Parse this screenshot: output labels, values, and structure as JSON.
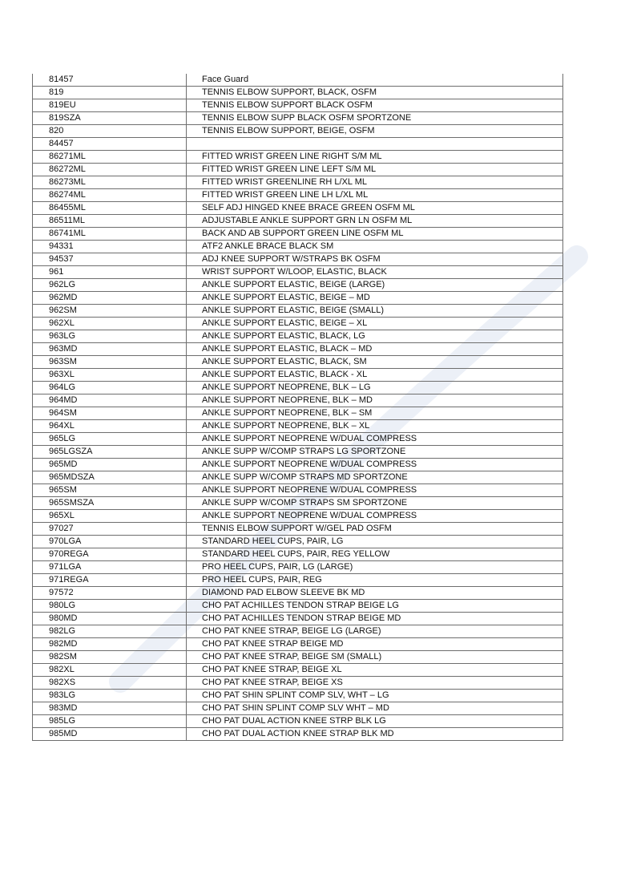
{
  "table": {
    "rows": [
      [
        "81457",
        "Face Guard"
      ],
      [
        "819",
        "TENNIS ELBOW SUPPORT, BLACK, OSFM"
      ],
      [
        "819EU",
        "TENNIS ELBOW SUPPORT BLACK OSFM"
      ],
      [
        "819SZA",
        "TENNIS ELBOW SUPP BLACK OSFM SPORTZONE"
      ],
      [
        "820",
        "TENNIS ELBOW SUPPORT, BEIGE, OSFM"
      ],
      [
        "84457",
        ""
      ],
      [
        "86271ML",
        "FITTED WRIST GREEN LINE RIGHT S/M ML"
      ],
      [
        "86272ML",
        "FITTED WRIST GREEN LINE LEFT S/M ML"
      ],
      [
        "86273ML",
        "FITTED WRIST GREENLINE RH L/XL ML"
      ],
      [
        "86274ML",
        "FITTED WRIST GREEN LINE LH L/XL ML"
      ],
      [
        "86455ML",
        "SELF ADJ HINGED KNEE BRACE GREEN OSFM ML"
      ],
      [
        "86511ML",
        "ADJUSTABLE ANKLE SUPPORT GRN LN OSFM ML"
      ],
      [
        "86741ML",
        "BACK AND AB SUPPORT GREEN LINE OSFM ML"
      ],
      [
        "94331",
        "ATF2 ANKLE BRACE BLACK SM"
      ],
      [
        "94537",
        "ADJ KNEE SUPPORT W/STRAPS BK OSFM"
      ],
      [
        "961",
        "WRIST SUPPORT W/LOOP, ELASTIC, BLACK"
      ],
      [
        "962LG",
        "ANKLE SUPPORT ELASTIC, BEIGE (LARGE)"
      ],
      [
        "962MD",
        "ANKLE SUPPORT ELASTIC, BEIGE – MD"
      ],
      [
        "962SM",
        "ANKLE SUPPORT ELASTIC, BEIGE (SMALL)"
      ],
      [
        "962XL",
        "ANKLE SUPPORT ELASTIC, BEIGE – XL"
      ],
      [
        "963LG",
        "ANKLE SUPPORT ELASTIC, BLACK, LG"
      ],
      [
        "963MD",
        "ANKLE SUPPORT ELASTIC, BLACK – MD"
      ],
      [
        "963SM",
        "ANKLE SUPPORT ELASTIC, BLACK, SM"
      ],
      [
        "963XL",
        "ANKLE SUPPORT ELASTIC, BLACK  - XL"
      ],
      [
        "964LG",
        "ANKLE SUPPORT NEOPRENE, BLK – LG"
      ],
      [
        "964MD",
        "ANKLE SUPPORT NEOPRENE, BLK – MD"
      ],
      [
        "964SM",
        "ANKLE SUPPORT NEOPRENE, BLK – SM"
      ],
      [
        "964XL",
        "ANKLE SUPPORT NEOPRENE, BLK – XL"
      ],
      [
        "965LG",
        "ANKLE SUPPORT NEOPRENE W/DUAL COMPRESS"
      ],
      [
        "965LGSZA",
        "ANKLE SUPP W/COMP STRAPS LG SPORTZONE"
      ],
      [
        "965MD",
        "ANKLE SUPPORT NEOPRENE W/DUAL COMPRESS"
      ],
      [
        "965MDSZA",
        "ANKLE SUPP W/COMP STRAPS MD SPORTZONE"
      ],
      [
        "965SM",
        "ANKLE SUPPORT NEOPRENE W/DUAL COMPRESS"
      ],
      [
        "965SMSZA",
        "ANKLE SUPP W/COMP STRAPS SM SPORTZONE"
      ],
      [
        "965XL",
        "ANKLE SUPPORT NEOPRENE W/DUAL COMPRESS"
      ],
      [
        "97027",
        "TENNIS ELBOW SUPPORT W/GEL PAD OSFM"
      ],
      [
        "970LGA",
        "STANDARD HEEL CUPS, PAIR, LG"
      ],
      [
        "970REGA",
        "STANDARD HEEL CUPS, PAIR, REG YELLOW"
      ],
      [
        "971LGA",
        "PRO HEEL CUPS, PAIR, LG (LARGE)"
      ],
      [
        "971REGA",
        "PRO HEEL CUPS, PAIR, REG"
      ],
      [
        "97572",
        "DIAMOND PAD ELBOW SLEEVE BK MD"
      ],
      [
        "980LG",
        "CHO PAT ACHILLES TENDON STRAP BEIGE LG"
      ],
      [
        "980MD",
        "CHO PAT ACHILLES TENDON STRAP BEIGE MD"
      ],
      [
        "982LG",
        "CHO PAT KNEE STRAP, BEIGE LG (LARGE)"
      ],
      [
        "982MD",
        "CHO PAT KNEE STRAP BEIGE MD"
      ],
      [
        "982SM",
        "CHO PAT KNEE STRAP, BEIGE SM (SMALL)"
      ],
      [
        "982XL",
        "CHO PAT KNEE STRAP, BEIGE XL"
      ],
      [
        "982XS",
        "CHO PAT KNEE STRAP, BEIGE XS"
      ],
      [
        "983LG",
        "CHO PAT SHIN SPLINT COMP SLV, WHT – LG"
      ],
      [
        "983MD",
        "CHO PAT SHIN SPLINT COMP SLV WHT – MD"
      ],
      [
        "985LG",
        "CHO PAT DUAL ACTION KNEE STRP BLK LG"
      ],
      [
        "985MD",
        "CHO PAT DUAL ACTION KNEE STRAP BLK MD"
      ]
    ]
  },
  "watermark_color": "#c9d6ea"
}
